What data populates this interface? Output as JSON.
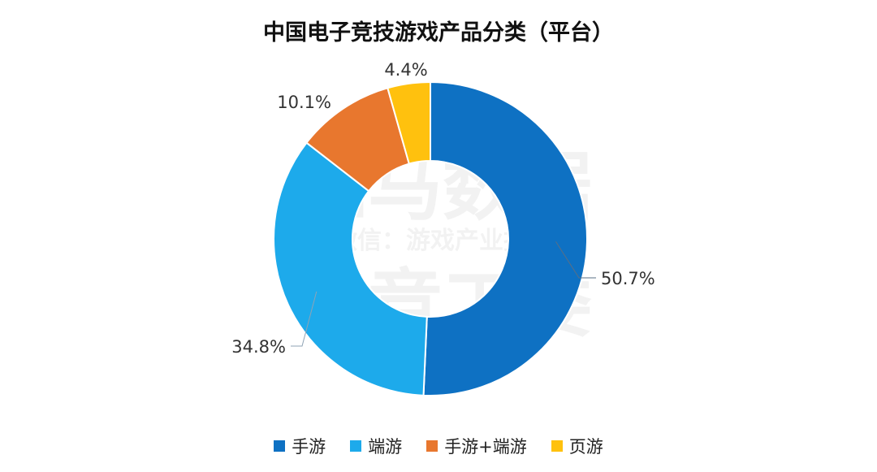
{
  "chart_data": {
    "type": "pie",
    "title": "中国电子竞技游戏产品分类（平台）",
    "categories": [
      "手游",
      "端游",
      "手游+端游",
      "页游"
    ],
    "values": [
      50.7,
      34.8,
      10.1,
      4.4
    ],
    "labels": [
      "50.7%",
      "34.8%",
      "10.1%",
      "4.4%"
    ],
    "colors": [
      "#0E71C3",
      "#1DAAEB",
      "#E8772E",
      "#FFC10E"
    ],
    "donut": true,
    "legend": "bottom"
  },
  "watermark": {
    "line1": "伽马数据",
    "line2": "微信：游戏产业报告",
    "line3": "电竞工委"
  }
}
